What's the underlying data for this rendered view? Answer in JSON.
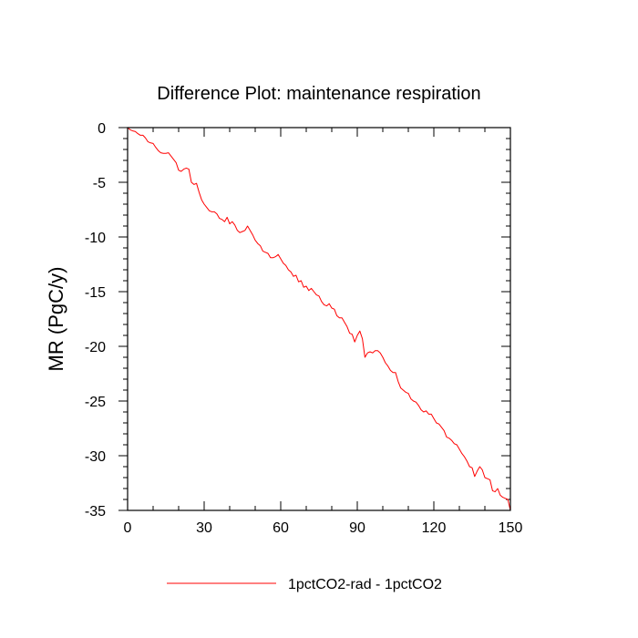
{
  "chart_data": {
    "type": "line",
    "title": "Difference Plot: maintenance respiration",
    "xlabel": "",
    "ylabel": "MR  (PgC/y)",
    "xlim": [
      0,
      150
    ],
    "ylim": [
      -35,
      0
    ],
    "x_ticks": [
      0,
      30,
      60,
      90,
      120,
      150
    ],
    "y_ticks": [
      0,
      -5,
      -10,
      -15,
      -20,
      -25,
      -30,
      -35
    ],
    "x_tick_labels": [
      "0",
      "30",
      "60",
      "90",
      "120",
      "150"
    ],
    "y_tick_labels": [
      "0",
      "-5",
      "-10",
      "-15",
      "-20",
      "-25",
      "-30",
      "-35"
    ],
    "grid": false,
    "legend_position": "bottom-center",
    "series": [
      {
        "name": "1pctCO2-rad - 1pctCO2",
        "color": "#ff0000",
        "x": [
          0,
          1,
          2,
          3,
          4,
          5,
          6,
          7,
          8,
          9,
          10,
          11,
          12,
          13,
          14,
          15,
          16,
          17,
          18,
          19,
          20,
          21,
          22,
          23,
          24,
          25,
          26,
          27,
          28,
          29,
          30,
          31,
          32,
          33,
          34,
          35,
          36,
          37,
          38,
          39,
          40,
          41,
          42,
          43,
          44,
          45,
          46,
          47,
          48,
          49,
          50,
          51,
          52,
          53,
          54,
          55,
          56,
          57,
          58,
          59,
          60,
          61,
          62,
          63,
          64,
          65,
          66,
          67,
          68,
          69,
          70,
          71,
          72,
          73,
          74,
          75,
          76,
          77,
          78,
          79,
          80,
          81,
          82,
          83,
          84,
          85,
          86,
          87,
          88,
          89,
          90,
          91,
          92,
          93,
          94,
          95,
          96,
          97,
          98,
          99,
          100,
          101,
          102,
          103,
          104,
          105,
          106,
          107,
          108,
          109,
          110,
          111,
          112,
          113,
          114,
          115,
          116,
          117,
          118,
          119,
          120,
          121,
          122,
          123,
          124,
          125,
          126,
          127,
          128,
          129,
          130,
          131,
          132,
          133,
          134,
          135,
          136,
          137,
          138,
          139,
          140,
          141,
          142,
          143,
          144,
          145,
          146,
          147,
          148,
          149,
          150
        ],
        "values": [
          0.0,
          -0.2,
          -0.3,
          -0.35,
          -0.55,
          -0.7,
          -0.7,
          -0.95,
          -1.3,
          -1.4,
          -1.45,
          -1.8,
          -2.1,
          -2.3,
          -2.35,
          -2.35,
          -2.3,
          -2.6,
          -2.9,
          -3.2,
          -3.9,
          -4.0,
          -3.8,
          -3.7,
          -3.8,
          -5.0,
          -5.2,
          -5.1,
          -5.9,
          -6.6,
          -7.0,
          -7.3,
          -7.6,
          -7.7,
          -7.7,
          -7.9,
          -8.3,
          -8.4,
          -8.6,
          -8.2,
          -8.8,
          -8.6,
          -8.9,
          -9.4,
          -9.6,
          -9.5,
          -9.4,
          -9.0,
          -9.4,
          -9.8,
          -10.3,
          -10.6,
          -10.8,
          -11.3,
          -11.4,
          -11.5,
          -11.9,
          -11.9,
          -11.8,
          -11.6,
          -12.0,
          -12.4,
          -12.6,
          -13.0,
          -13.2,
          -13.6,
          -13.5,
          -14.1,
          -14.0,
          -14.6,
          -14.5,
          -14.9,
          -14.7,
          -15.0,
          -15.3,
          -15.4,
          -15.9,
          -16.2,
          -16.3,
          -16.1,
          -16.5,
          -16.6,
          -17.2,
          -17.4,
          -17.4,
          -17.8,
          -18.2,
          -18.8,
          -18.9,
          -19.6,
          -19.0,
          -18.6,
          -19.3,
          -21.0,
          -20.6,
          -20.5,
          -20.6,
          -20.4,
          -20.4,
          -20.6,
          -21.0,
          -21.5,
          -21.8,
          -22.2,
          -22.4,
          -22.4,
          -23.2,
          -23.8,
          -24.0,
          -24.2,
          -24.3,
          -24.8,
          -25.0,
          -25.1,
          -25.4,
          -25.8,
          -26.0,
          -25.9,
          -26.2,
          -26.2,
          -26.6,
          -27.0,
          -27.1,
          -27.4,
          -27.7,
          -28.3,
          -28.4,
          -28.6,
          -28.9,
          -29.0,
          -29.4,
          -29.8,
          -30.1,
          -30.5,
          -31.0,
          -31.1,
          -31.9,
          -31.4,
          -31.0,
          -31.3,
          -32.0,
          -32.1,
          -32.2,
          -33.2,
          -33.3,
          -33.0,
          -33.6,
          -33.8,
          -33.9,
          -34.0,
          -35.0
        ]
      }
    ]
  }
}
